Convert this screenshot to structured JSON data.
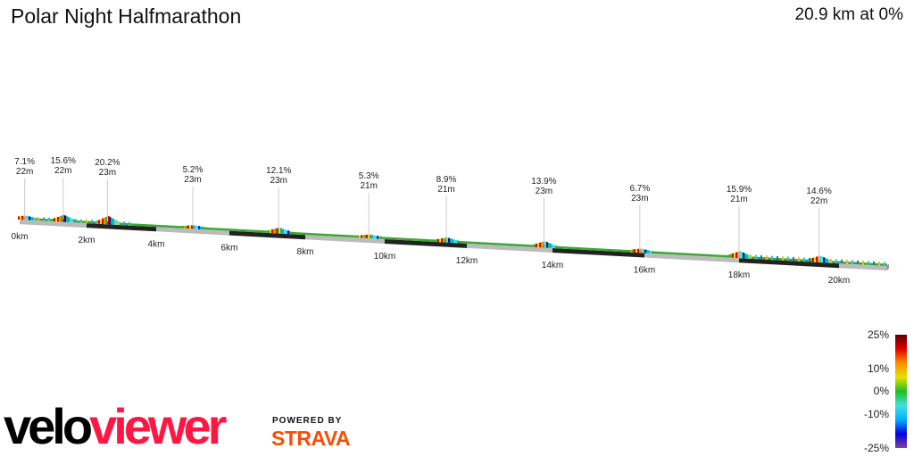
{
  "header": {
    "title": "Polar Night Halfmarathon",
    "summary": "20.9 km at 0%"
  },
  "branding": {
    "logo_part1": "velo",
    "logo_part2": "viewer",
    "powered_by": "POWERED BY",
    "strava": "STRAVA"
  },
  "chart_data": {
    "type": "area",
    "title": "Polar Night Halfmarathon",
    "total_distance_km": 20.9,
    "x_ticks": [
      "0km",
      "2km",
      "4km",
      "6km",
      "8km",
      "10km",
      "12km",
      "14km",
      "16km",
      "18km",
      "20km"
    ],
    "annotations": [
      {
        "km": 0.15,
        "grade": "7.1%",
        "elev": "22m"
      },
      {
        "km": 1.3,
        "grade": "15.6%",
        "elev": "22m"
      },
      {
        "km": 2.6,
        "grade": "20.2%",
        "elev": "23m"
      },
      {
        "km": 5.0,
        "grade": "5.2%",
        "elev": "23m"
      },
      {
        "km": 7.3,
        "grade": "12.1%",
        "elev": "23m"
      },
      {
        "km": 9.6,
        "grade": "5.3%",
        "elev": "21m"
      },
      {
        "km": 11.5,
        "grade": "8.9%",
        "elev": "21m"
      },
      {
        "km": 13.8,
        "grade": "13.9%",
        "elev": "23m"
      },
      {
        "km": 15.9,
        "grade": "6.7%",
        "elev": "23m"
      },
      {
        "km": 18.0,
        "grade": "15.9%",
        "elev": "21m"
      },
      {
        "km": 19.6,
        "grade": "14.6%",
        "elev": "22m"
      }
    ],
    "legend": {
      "labels": [
        "25%",
        "10%",
        "0%",
        "-10%",
        "-25%"
      ],
      "colors": [
        "#5a0000",
        "#e00000",
        "#ff8c00",
        "#e8e000",
        "#20c020",
        "#40e0e0",
        "#00b0ff",
        "#0000e0",
        "#8040a0"
      ]
    }
  }
}
